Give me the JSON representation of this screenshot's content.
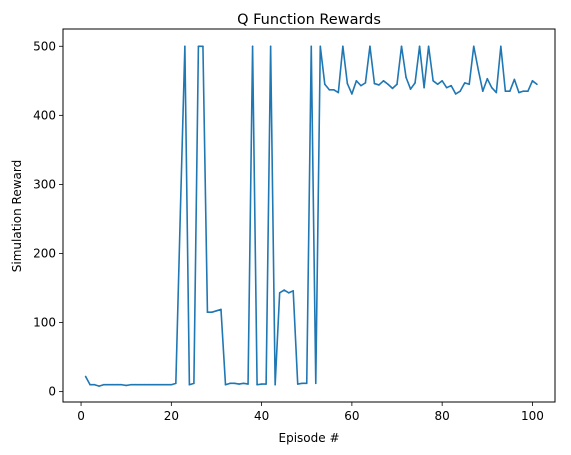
{
  "chart_data": {
    "type": "line",
    "title": "Q Function Rewards",
    "xlabel": "Episode #",
    "ylabel": "Simulation Reward",
    "xlim": [
      -4,
      105
    ],
    "ylim": [
      -15,
      525
    ],
    "xticks": [
      0,
      20,
      40,
      60,
      80,
      100
    ],
    "yticks": [
      0,
      100,
      200,
      300,
      400,
      500
    ],
    "grid": false,
    "series": [
      {
        "color": "#1f77b4",
        "x": [
          1,
          2,
          3,
          4,
          5,
          6,
          7,
          8,
          9,
          10,
          11,
          12,
          13,
          14,
          15,
          16,
          17,
          18,
          19,
          20,
          21,
          22,
          23,
          24,
          25,
          26,
          27,
          28,
          29,
          30,
          31,
          32,
          33,
          34,
          35,
          36,
          37,
          38,
          39,
          40,
          41,
          42,
          43,
          44,
          45,
          46,
          47,
          48,
          49,
          50,
          51,
          52,
          53,
          54,
          55,
          56,
          57,
          58,
          59,
          60,
          61,
          62,
          63,
          64,
          65,
          66,
          67,
          68,
          69,
          70,
          71,
          72,
          73,
          74,
          75,
          76,
          77,
          78,
          79,
          80,
          81,
          82,
          83,
          84,
          85,
          86,
          87,
          88,
          89,
          90,
          91,
          92,
          93,
          94,
          95,
          96,
          97,
          98,
          99,
          100,
          101
        ],
        "values": [
          22,
          10,
          10,
          8,
          10,
          10,
          10,
          10,
          10,
          9,
          10,
          10,
          10,
          10,
          10,
          10,
          10,
          10,
          10,
          10,
          12,
          260,
          500,
          10,
          12,
          500,
          500,
          115,
          115,
          117,
          119,
          10,
          12,
          12,
          11,
          12,
          11,
          500,
          10,
          11,
          11,
          500,
          10,
          143,
          147,
          143,
          146,
          11,
          12,
          12,
          500,
          12,
          500,
          445,
          437,
          437,
          433,
          500,
          446,
          431,
          450,
          443,
          447,
          500,
          446,
          444,
          450,
          445,
          439,
          445,
          500,
          455,
          438,
          447,
          500,
          440,
          500,
          450,
          445,
          450,
          440,
          443,
          431,
          435,
          447,
          445,
          500,
          466,
          435,
          453,
          440,
          433,
          500,
          435,
          435,
          452,
          433,
          435,
          435,
          450,
          445
        ]
      }
    ]
  }
}
